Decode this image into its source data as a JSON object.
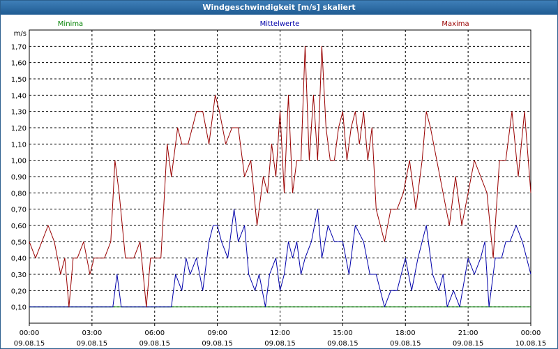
{
  "window": {
    "title": "Windgeschwindigkeit [m/s] skaliert"
  },
  "chart_data": {
    "type": "line",
    "ylabel": "m/s",
    "ylim": [
      0.0,
      1.8
    ],
    "yticks": [
      "0,10",
      "0,20",
      "0,30",
      "0,40",
      "0,50",
      "0,60",
      "0,70",
      "0,80",
      "0,90",
      "1,00",
      "1,10",
      "1,20",
      "1,30",
      "1,40",
      "1,50",
      "1,60",
      "1,70"
    ],
    "ytick_values": [
      0.1,
      0.2,
      0.3,
      0.4,
      0.5,
      0.6,
      0.7,
      0.8,
      0.9,
      1.0,
      1.1,
      1.2,
      1.3,
      1.4,
      1.5,
      1.6,
      1.7
    ],
    "xlim_hours": [
      0,
      24
    ],
    "xticks": [
      {
        "h": 0,
        "time": "00:00",
        "date": "09.08.15"
      },
      {
        "h": 3,
        "time": "03:00",
        "date": "09.08.15"
      },
      {
        "h": 6,
        "time": "06:00",
        "date": "09.08.15"
      },
      {
        "h": 9,
        "time": "09:00",
        "date": "09.08.15"
      },
      {
        "h": 12,
        "time": "12:00",
        "date": "09.08.15"
      },
      {
        "h": 15,
        "time": "15:00",
        "date": "09.08.15"
      },
      {
        "h": 18,
        "time": "18:00",
        "date": "09.08.15"
      },
      {
        "h": 21,
        "time": "21:00",
        "date": "09.08.15"
      },
      {
        "h": 24,
        "time": "00:00",
        "date": "10.08.15"
      }
    ],
    "grid": true,
    "legend": [
      {
        "label": "Minima",
        "color": "#008000"
      },
      {
        "label": "Mittelwerte",
        "color": "#0000aa"
      },
      {
        "label": "Maxima",
        "color": "#990000"
      }
    ],
    "series": [
      {
        "name": "Minima",
        "color": "#008000",
        "x": [
          0,
          24
        ],
        "y": [
          0.1,
          0.1
        ]
      },
      {
        "name": "Mittelwerte",
        "color": "#0000aa",
        "x": [
          0,
          4.0,
          4.2,
          4.4,
          5.5,
          6.8,
          7.0,
          7.3,
          7.5,
          7.7,
          8.0,
          8.3,
          8.6,
          8.8,
          9.0,
          9.2,
          9.5,
          9.8,
          10.0,
          10.3,
          10.5,
          10.8,
          11.0,
          11.3,
          11.5,
          11.8,
          12.0,
          12.2,
          12.4,
          12.6,
          12.8,
          13.0,
          13.2,
          13.5,
          13.8,
          14.0,
          14.3,
          14.6,
          15.0,
          15.3,
          15.6,
          16.0,
          16.3,
          16.6,
          17.0,
          17.3,
          17.6,
          18.0,
          18.3,
          18.6,
          18.8,
          19.0,
          19.3,
          19.6,
          19.8,
          20.0,
          20.3,
          20.6,
          21.0,
          21.3,
          21.6,
          21.8,
          22.0,
          22.3,
          22.6,
          22.8,
          23.0,
          23.3,
          23.6,
          23.8,
          24.0
        ],
        "y": [
          0.1,
          0.1,
          0.3,
          0.1,
          0.1,
          0.1,
          0.3,
          0.2,
          0.4,
          0.3,
          0.4,
          0.2,
          0.5,
          0.6,
          0.6,
          0.5,
          0.4,
          0.7,
          0.5,
          0.6,
          0.3,
          0.2,
          0.3,
          0.1,
          0.3,
          0.4,
          0.2,
          0.3,
          0.5,
          0.4,
          0.5,
          0.3,
          0.4,
          0.5,
          0.7,
          0.4,
          0.6,
          0.5,
          0.5,
          0.3,
          0.6,
          0.5,
          0.3,
          0.3,
          0.1,
          0.2,
          0.2,
          0.4,
          0.2,
          0.4,
          0.5,
          0.6,
          0.3,
          0.2,
          0.3,
          0.1,
          0.2,
          0.1,
          0.4,
          0.3,
          0.4,
          0.5,
          0.1,
          0.4,
          0.4,
          0.5,
          0.5,
          0.6,
          0.5,
          0.4,
          0.3
        ]
      },
      {
        "name": "Maxima",
        "color": "#990000",
        "x": [
          0,
          0.3,
          0.6,
          0.9,
          1.2,
          1.5,
          1.7,
          1.9,
          2.1,
          2.3,
          2.6,
          2.9,
          3.1,
          3.3,
          3.6,
          3.9,
          4.1,
          4.3,
          4.6,
          5.0,
          5.3,
          5.6,
          5.8,
          6.1,
          6.3,
          6.6,
          6.8,
          7.1,
          7.3,
          7.6,
          8.0,
          8.3,
          8.6,
          8.9,
          9.1,
          9.4,
          9.7,
          10.0,
          10.3,
          10.6,
          10.9,
          11.2,
          11.4,
          11.6,
          11.8,
          12.0,
          12.2,
          12.4,
          12.6,
          12.8,
          13.0,
          13.2,
          13.4,
          13.6,
          13.8,
          14.0,
          14.2,
          14.4,
          14.6,
          14.8,
          15.0,
          15.2,
          15.4,
          15.6,
          15.8,
          16.0,
          16.2,
          16.4,
          16.6,
          16.8,
          17.0,
          17.3,
          17.6,
          17.9,
          18.2,
          18.5,
          18.8,
          19.0,
          19.2,
          19.5,
          19.8,
          20.1,
          20.4,
          20.7,
          21.0,
          21.3,
          21.6,
          21.9,
          22.2,
          22.5,
          22.8,
          23.1,
          23.4,
          23.7,
          24.0
        ],
        "y": [
          0.5,
          0.4,
          0.5,
          0.6,
          0.5,
          0.3,
          0.4,
          0.1,
          0.4,
          0.4,
          0.5,
          0.3,
          0.4,
          0.4,
          0.4,
          0.5,
          1.0,
          0.8,
          0.4,
          0.4,
          0.5,
          0.1,
          0.4,
          0.4,
          0.4,
          1.1,
          0.9,
          1.2,
          1.1,
          1.1,
          1.3,
          1.3,
          1.1,
          1.4,
          1.3,
          1.1,
          1.2,
          1.2,
          0.9,
          1.0,
          0.6,
          0.9,
          0.8,
          1.1,
          0.9,
          1.3,
          0.8,
          1.4,
          0.8,
          1.0,
          1.0,
          1.7,
          1.0,
          1.4,
          1.0,
          1.7,
          1.2,
          1.0,
          1.0,
          1.2,
          1.3,
          1.0,
          1.2,
          1.3,
          1.1,
          1.3,
          1.0,
          1.2,
          0.7,
          0.6,
          0.5,
          0.7,
          0.7,
          0.8,
          1.0,
          0.7,
          1.0,
          1.3,
          1.2,
          1.0,
          0.8,
          0.6,
          0.9,
          0.6,
          0.8,
          1.0,
          0.9,
          0.8,
          0.4,
          1.0,
          1.0,
          1.3,
          0.9,
          1.3,
          0.8
        ]
      }
    ]
  }
}
